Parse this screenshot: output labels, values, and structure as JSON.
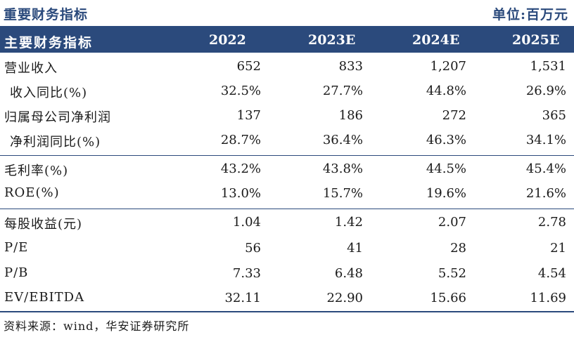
{
  "title": "重要财务指标",
  "unit": "单位:百万元",
  "header": {
    "label": "主要财务指标",
    "years": [
      "2022",
      "2023E",
      "2024E",
      "2025E"
    ]
  },
  "rows": [
    {
      "label": "营业收入",
      "values": [
        "652",
        "833",
        "1,207",
        "1,531"
      ]
    },
    {
      "label": "收入同比(%)",
      "values": [
        "32.5%",
        "27.7%",
        "44.8%",
        "26.9%"
      ]
    },
    {
      "label": "归属母公司净利润",
      "values": [
        "137",
        "186",
        "272",
        "365"
      ]
    },
    {
      "label": "净利润同比(%)",
      "values": [
        "28.7%",
        "36.4%",
        "46.3%",
        "34.1%"
      ]
    },
    {
      "label": "毛利率(%)",
      "values": [
        "43.2%",
        "43.8%",
        "44.5%",
        "45.4%"
      ]
    },
    {
      "label": "ROE(%)",
      "values": [
        "13.0%",
        "15.7%",
        "19.6%",
        "21.6%"
      ]
    },
    {
      "label": "每股收益(元)",
      "values": [
        "1.04",
        "1.42",
        "2.07",
        "2.78"
      ]
    },
    {
      "label": "P/E",
      "values": [
        "56",
        "41",
        "28",
        "21"
      ]
    },
    {
      "label": "P/B",
      "values": [
        "7.33",
        "6.48",
        "5.52",
        "4.54"
      ]
    },
    {
      "label": "EV/EBITDA",
      "values": [
        "32.11",
        "22.90",
        "15.66",
        "11.69"
      ]
    }
  ],
  "source": "资料来源：wind，华安证券研究所",
  "colors": {
    "accent": "#2b4a7c",
    "header_text": "#ffffff"
  }
}
